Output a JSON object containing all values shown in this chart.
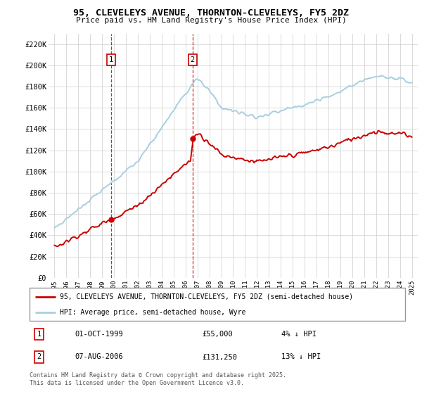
{
  "title": "95, CLEVELEYS AVENUE, THORNTON-CLEVELEYS, FY5 2DZ",
  "subtitle": "Price paid vs. HM Land Registry's House Price Index (HPI)",
  "ylabel_ticks": [
    "£0",
    "£20K",
    "£40K",
    "£60K",
    "£80K",
    "£100K",
    "£120K",
    "£140K",
    "£160K",
    "£180K",
    "£200K",
    "£220K"
  ],
  "ytick_values": [
    0,
    20000,
    40000,
    60000,
    80000,
    100000,
    120000,
    140000,
    160000,
    180000,
    200000,
    220000
  ],
  "ylim": [
    0,
    230000
  ],
  "xlim_start": 1994.5,
  "xlim_end": 2025.5,
  "hpi_color": "#a8cfe0",
  "price_color": "#cc0000",
  "vertical_line_color": "#cc0000",
  "sale1_x": 1999.75,
  "sale1_y": 55000,
  "sale1_label": "1",
  "sale1_date": "01-OCT-1999",
  "sale1_price": "£55,000",
  "sale1_hpi": "4% ↓ HPI",
  "sale2_x": 2006.58,
  "sale2_y": 131250,
  "sale2_label": "2",
  "sale2_date": "07-AUG-2006",
  "sale2_price": "£131,250",
  "sale2_hpi": "13% ↓ HPI",
  "legend_line1": "95, CLEVELEYS AVENUE, THORNTON-CLEVELEYS, FY5 2DZ (semi-detached house)",
  "legend_line2": "HPI: Average price, semi-detached house, Wyre",
  "footer": "Contains HM Land Registry data © Crown copyright and database right 2025.\nThis data is licensed under the Open Government Licence v3.0.",
  "xtick_years": [
    1995,
    1996,
    1997,
    1998,
    1999,
    2000,
    2001,
    2002,
    2003,
    2004,
    2005,
    2006,
    2007,
    2008,
    2009,
    2010,
    2011,
    2012,
    2013,
    2014,
    2015,
    2016,
    2017,
    2018,
    2019,
    2020,
    2021,
    2022,
    2023,
    2024,
    2025
  ],
  "fig_width": 6.0,
  "fig_height": 5.6,
  "dpi": 100
}
